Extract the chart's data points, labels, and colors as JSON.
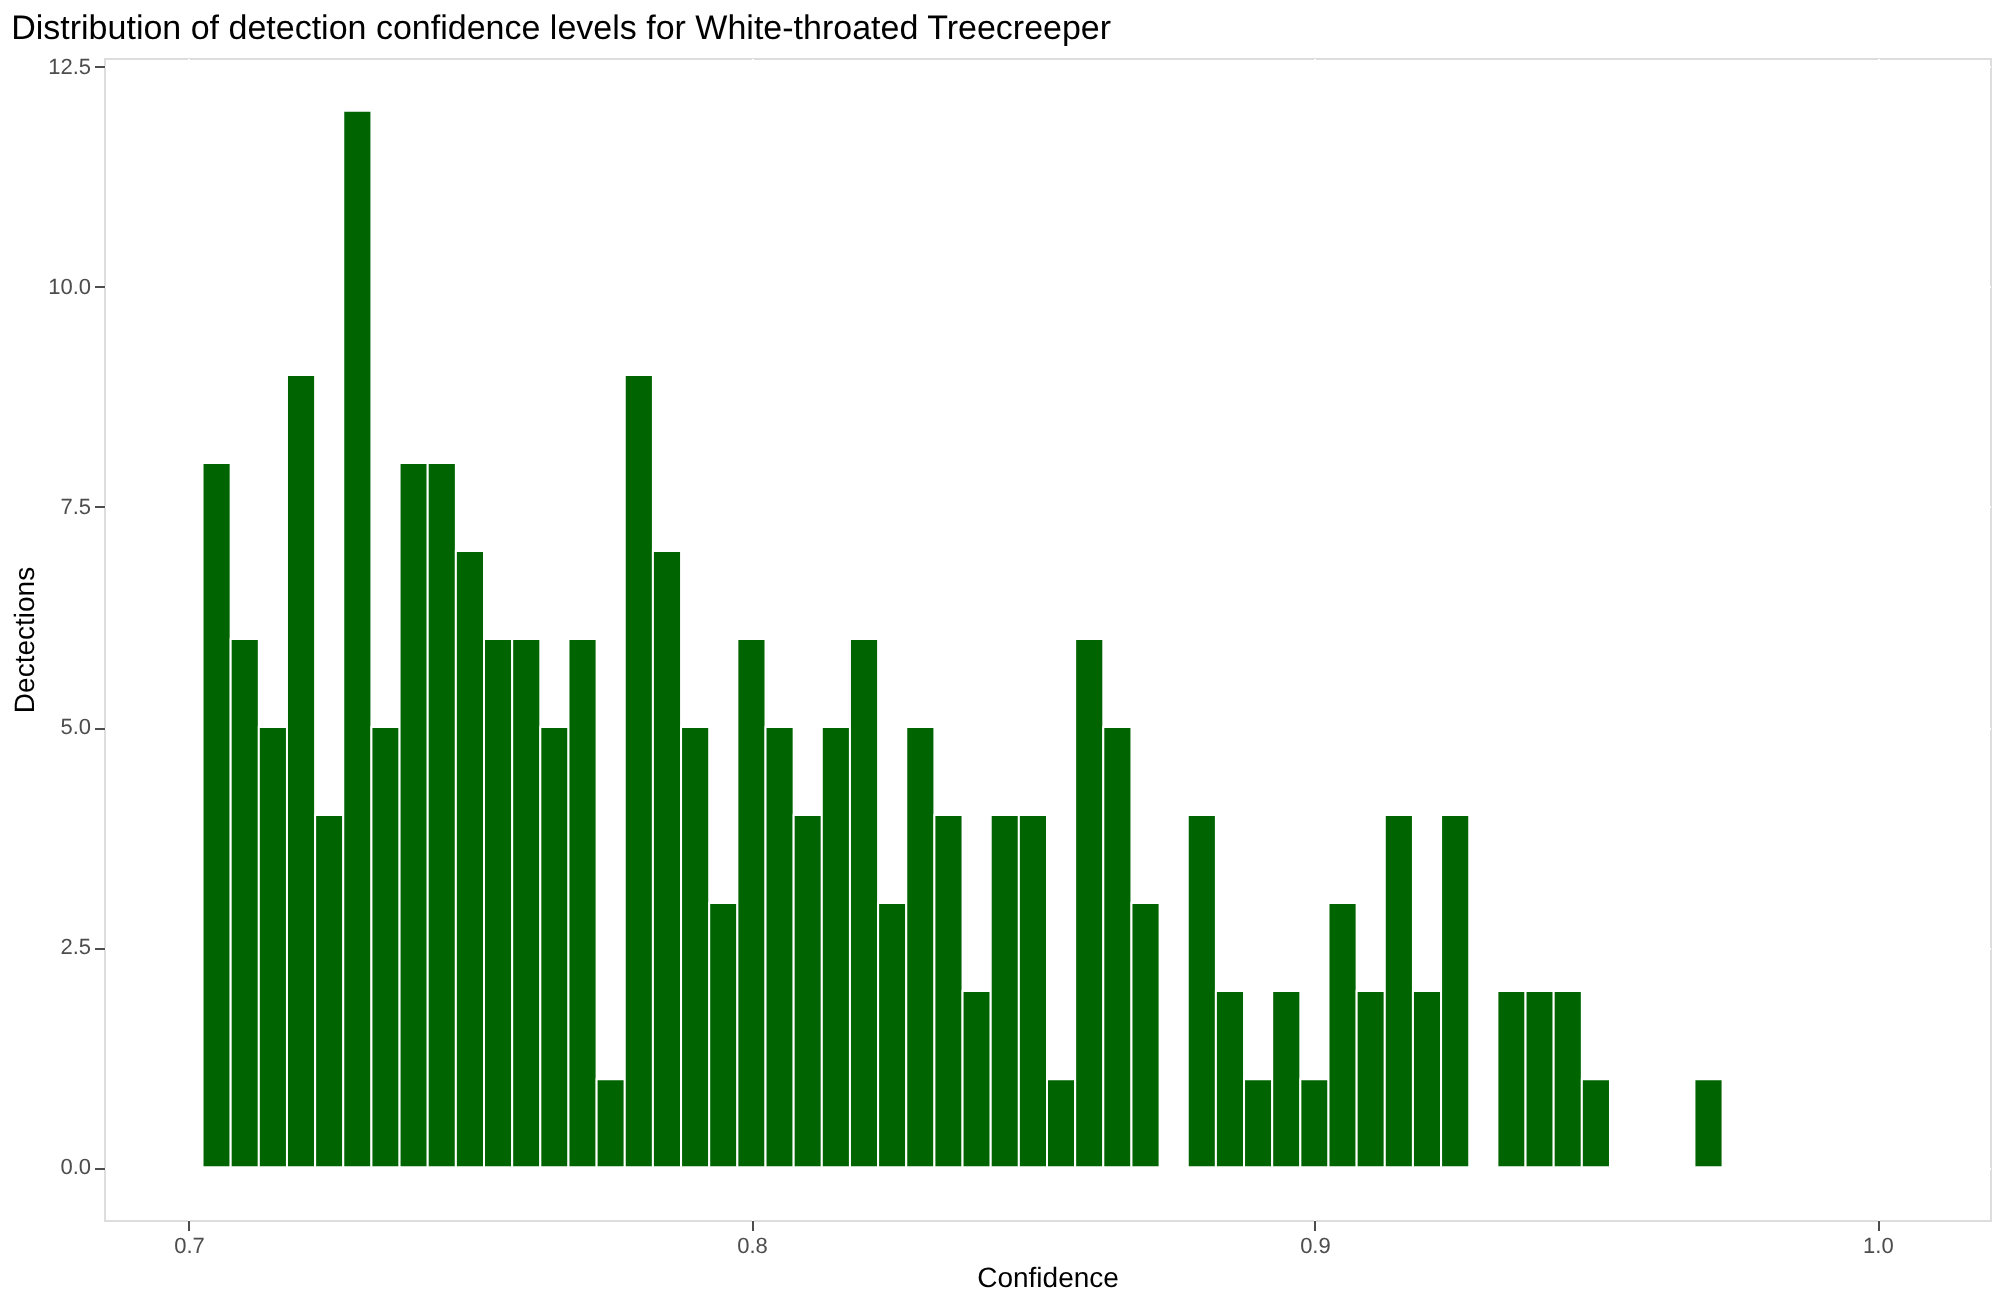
{
  "chart_data": {
    "type": "histogram",
    "title": "Distribution of detection confidence levels for White-throated Treecreeper",
    "xlabel": "Confidence",
    "ylabel": "Dectections",
    "bins": [
      0.7025,
      0.7075,
      0.7125,
      0.7175,
      0.7225,
      0.7275,
      0.7325,
      0.7375,
      0.7425,
      0.7475,
      0.7525,
      0.7575,
      0.7625,
      0.7675,
      0.7725,
      0.7775,
      0.7825,
      0.7875,
      0.7925,
      0.7975,
      0.8025,
      0.8075,
      0.8125,
      0.8175,
      0.8225,
      0.8275,
      0.8325,
      0.8375,
      0.8425,
      0.8475,
      0.8525,
      0.8575,
      0.8625,
      0.8675,
      0.8725,
      0.8775,
      0.8825,
      0.8875,
      0.8925,
      0.8975,
      0.9025,
      0.9075,
      0.9125,
      0.9175,
      0.9225,
      0.9275,
      0.9325,
      0.9375,
      0.9425,
      0.9475,
      0.9525,
      0.9575,
      0.9625,
      0.9675,
      0.9725
    ],
    "values": [
      8,
      6,
      5,
      9,
      4,
      12,
      5,
      8,
      8,
      7,
      6,
      6,
      5,
      6,
      1,
      9,
      7,
      5,
      3,
      6,
      5,
      4,
      5,
      6,
      3,
      5,
      4,
      2,
      4,
      4,
      1,
      6,
      5,
      3,
      0,
      4,
      2,
      1,
      2,
      1,
      3,
      2,
      4,
      2,
      4,
      0,
      2,
      2,
      2,
      1,
      0,
      0,
      0,
      1
    ],
    "color": "#006400",
    "xlim": [
      0.685,
      1.02
    ],
    "xticks": [
      0.7,
      0.8,
      0.9,
      {
        "value": 1.0,
        "label": "1.0"
      }
    ],
    "ylim": [
      -0.6,
      12.6
    ],
    "yticks": [
      {
        "value": 0,
        "label": "0.0"
      },
      2.5,
      {
        "value": 5,
        "label": "5.0"
      },
      7.5,
      {
        "value": 10,
        "label": "10.0"
      },
      12.5
    ],
    "grid": true
  }
}
